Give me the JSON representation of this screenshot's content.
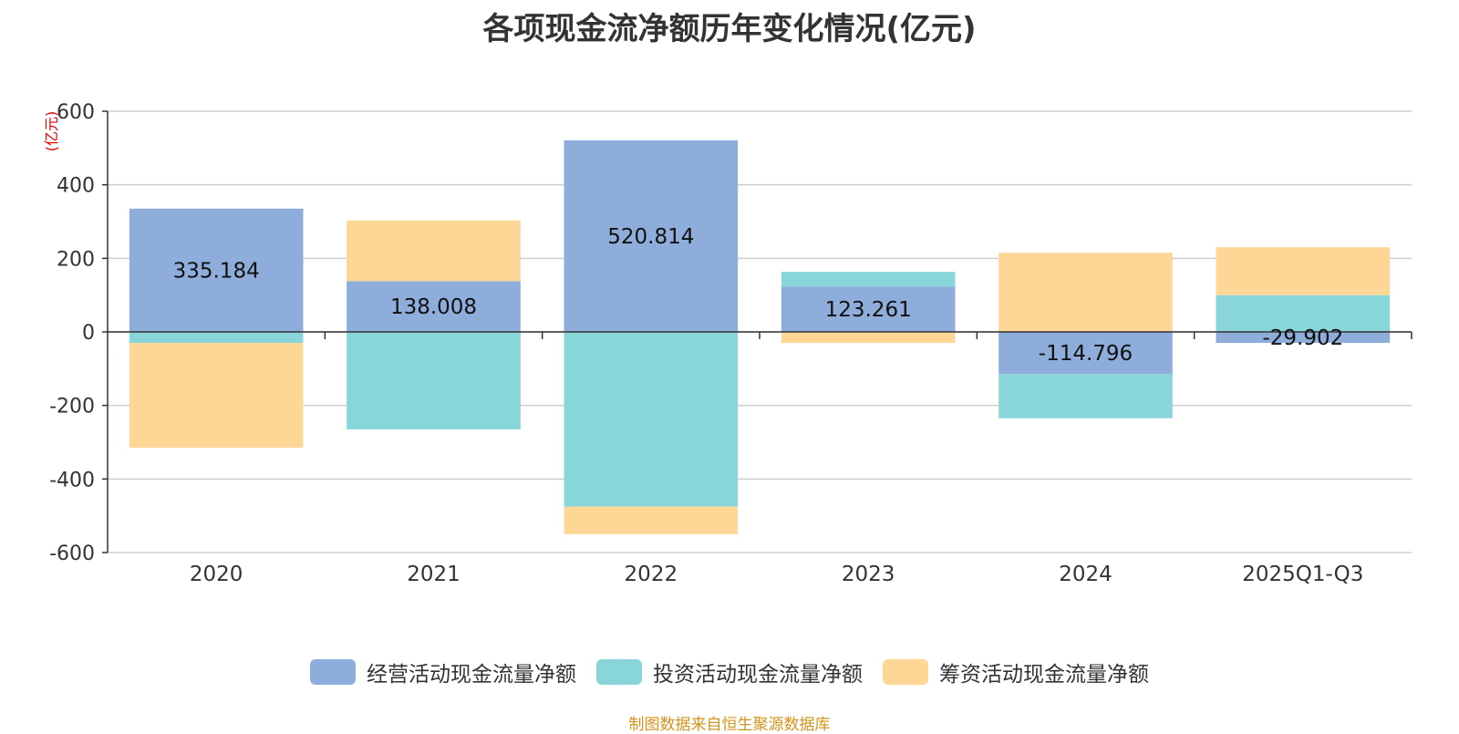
{
  "chart_data": {
    "type": "bar",
    "stacked": true,
    "title": "各项现金流净额历年变化情况(亿元)",
    "ylabel": "(亿元)",
    "xlabel": "",
    "ylim": [
      -600,
      600
    ],
    "yticks": [
      600,
      400,
      200,
      0,
      -200,
      -400,
      -600
    ],
    "grid": true,
    "legend_position": "bottom",
    "categories": [
      "2020",
      "2021",
      "2022",
      "2023",
      "2024",
      "2025Q1-Q3"
    ],
    "series": [
      {
        "name": "经营活动现金流量净额",
        "color": "#8eaddb",
        "values": [
          335.184,
          138.008,
          520.814,
          123.261,
          -114.796,
          -29.902
        ],
        "labels": [
          "335.184",
          "138.008",
          "520.814",
          "123.261",
          "-114.796",
          "-29.902"
        ]
      },
      {
        "name": "投资活动现金流量净额",
        "color": "#88d6d9",
        "values": [
          -30,
          -265,
          -475,
          40,
          -120,
          100
        ]
      },
      {
        "name": "筹资活动现金流量净额",
        "color": "#fed797",
        "values": [
          -285,
          165,
          -75,
          -30,
          215,
          130
        ]
      }
    ]
  },
  "source": "制图数据来自恒生聚源数据库"
}
